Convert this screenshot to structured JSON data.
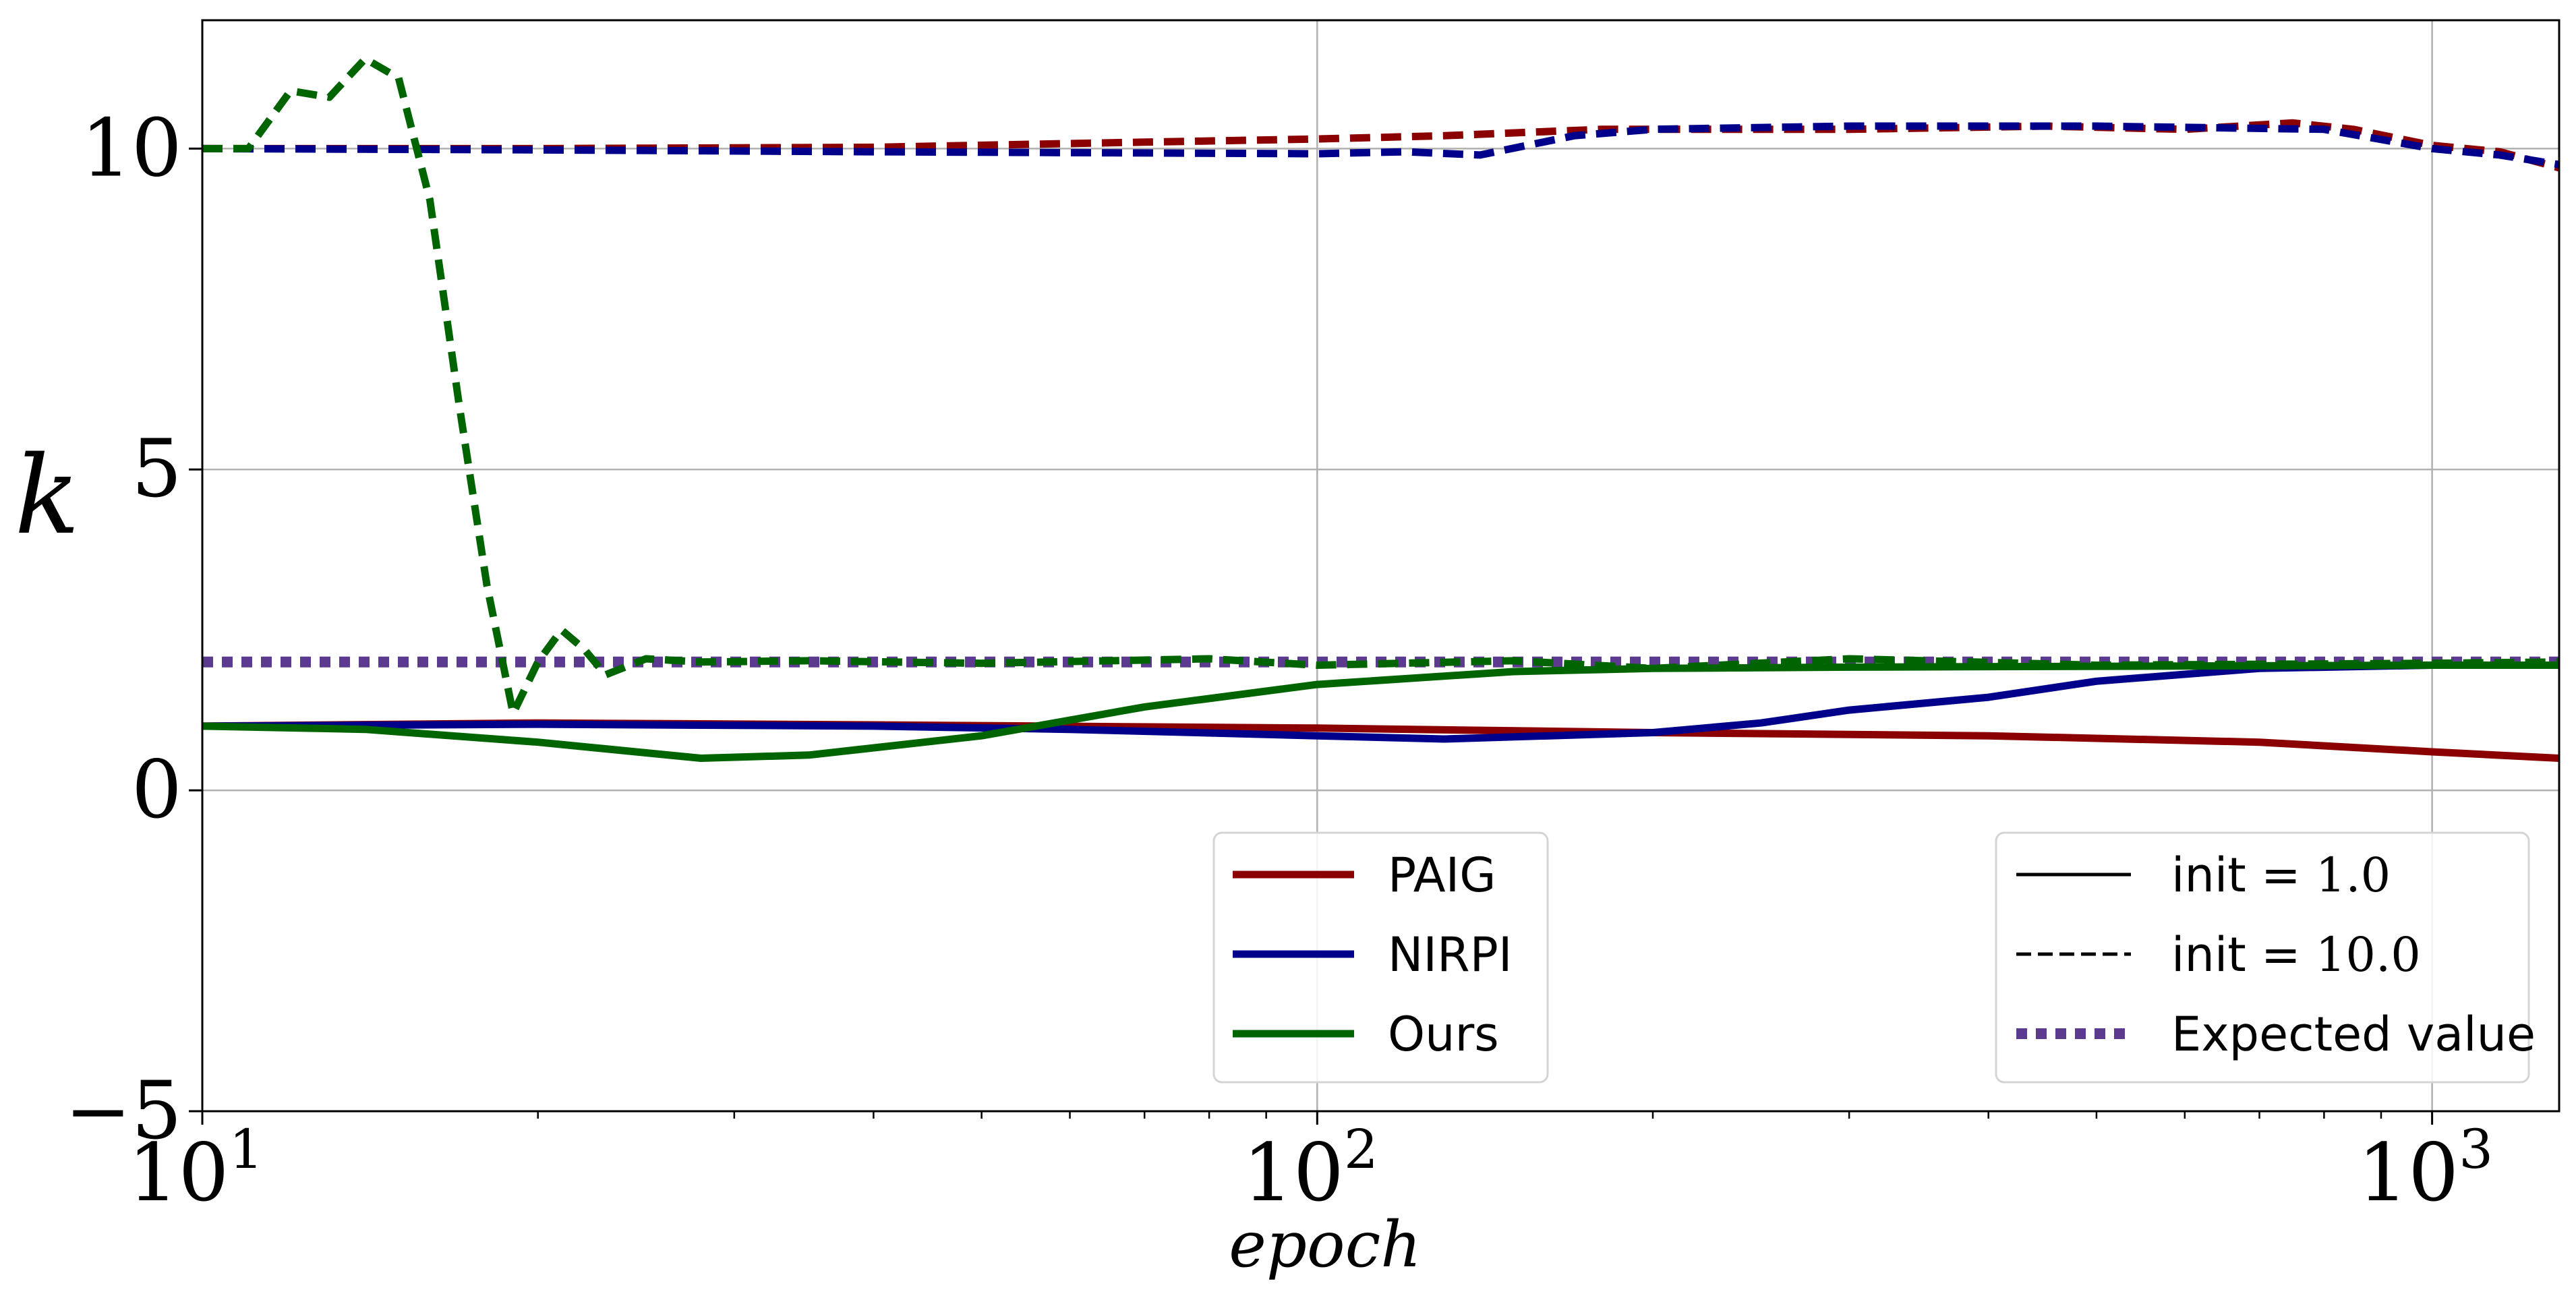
{
  "chart_data": {
    "type": "line",
    "xlabel": "epoch",
    "ylabel": "k",
    "xscale": "log",
    "xlim": [
      10,
      1300
    ],
    "ylim": [
      -5,
      12
    ],
    "grid": true,
    "x_ticks": [
      {
        "value": 10,
        "base": "10",
        "exp": "1"
      },
      {
        "value": 100,
        "base": "10",
        "exp": "2"
      },
      {
        "value": 1000,
        "base": "10",
        "exp": "3"
      }
    ],
    "y_ticks": [
      {
        "value": -5,
        "label": "−5"
      },
      {
        "value": 0,
        "label": "0"
      },
      {
        "value": 5,
        "label": "5"
      },
      {
        "value": 10,
        "label": "10"
      }
    ],
    "colors": {
      "PAIG": "#8b0000",
      "NIRPI": "#00008b",
      "Ours": "#006400",
      "expected": "#5b3a8f"
    },
    "series": [
      {
        "name": "PAIG",
        "style": "solid",
        "color": "#8b0000",
        "x": [
          10,
          20,
          40,
          100,
          200,
          400,
          700,
          1000,
          1300
        ],
        "y": [
          1.0,
          1.05,
          1.02,
          0.97,
          0.9,
          0.85,
          0.75,
          0.6,
          0.5
        ]
      },
      {
        "name": "PAIG",
        "style": "dashed",
        "color": "#8b0000",
        "x": [
          10,
          20,
          40,
          70,
          100,
          130,
          180,
          300,
          450,
          600,
          750,
          850,
          1000,
          1150,
          1300
        ],
        "y": [
          10.0,
          10.0,
          10.02,
          10.1,
          10.15,
          10.2,
          10.3,
          10.3,
          10.35,
          10.3,
          10.4,
          10.3,
          10.05,
          9.95,
          9.7
        ]
      },
      {
        "name": "NIRPI",
        "style": "solid",
        "color": "#00008b",
        "x": [
          10,
          20,
          40,
          60,
          100,
          130,
          200,
          250,
          300,
          400,
          500,
          700,
          1000,
          1300
        ],
        "y": [
          1.0,
          1.03,
          1.0,
          0.95,
          0.85,
          0.8,
          0.9,
          1.05,
          1.25,
          1.45,
          1.7,
          1.9,
          1.95,
          1.95
        ]
      },
      {
        "name": "NIRPI",
        "style": "dashed",
        "color": "#00008b",
        "x": [
          10,
          20,
          40,
          100,
          120,
          140,
          170,
          200,
          300,
          500,
          800,
          1000,
          1150,
          1300
        ],
        "y": [
          10.0,
          9.98,
          9.95,
          9.92,
          9.95,
          9.9,
          10.2,
          10.3,
          10.35,
          10.35,
          10.3,
          10.0,
          9.9,
          9.75
        ]
      },
      {
        "name": "Ours",
        "style": "solid",
        "color": "#006400",
        "x": [
          10,
          14,
          20,
          28,
          35,
          50,
          70,
          100,
          150,
          200,
          300,
          1000,
          1300
        ],
        "y": [
          1.0,
          0.95,
          0.75,
          0.5,
          0.55,
          0.85,
          1.3,
          1.65,
          1.85,
          1.9,
          1.92,
          1.95,
          1.95
        ]
      },
      {
        "name": "Ours",
        "style": "dashed",
        "color": "#006400",
        "x": [
          10,
          11,
          12,
          13,
          14,
          15,
          16,
          17,
          18,
          19,
          20,
          21,
          22,
          23,
          25,
          28,
          35,
          50,
          80,
          100,
          150,
          200,
          300,
          500,
          1000,
          1300
        ],
        "y": [
          10.0,
          10.0,
          10.9,
          10.8,
          11.4,
          11.1,
          9.2,
          6.0,
          3.2,
          1.2,
          2.0,
          2.5,
          2.2,
          1.8,
          2.05,
          2.0,
          2.02,
          1.98,
          2.05,
          1.95,
          2.02,
          1.9,
          2.05,
          1.95,
          1.98,
          2.0
        ]
      },
      {
        "name": "Expected value",
        "style": "dotted",
        "color": "#5b3a8f",
        "x": [
          10,
          1300
        ],
        "y": [
          2.0,
          2.0
        ]
      }
    ]
  },
  "legend": {
    "methods": [
      {
        "label": "PAIG",
        "color": "#8b0000"
      },
      {
        "label": "NIRPI",
        "color": "#00008b"
      },
      {
        "label": "Ours",
        "color": "#006400"
      }
    ],
    "styles": [
      {
        "prefix": "init = ",
        "value": "1.0",
        "style": "solid"
      },
      {
        "prefix": "init = ",
        "value": "10.0",
        "style": "dashed"
      },
      {
        "prefix": "Expected value",
        "value": "",
        "style": "dotted"
      }
    ]
  }
}
